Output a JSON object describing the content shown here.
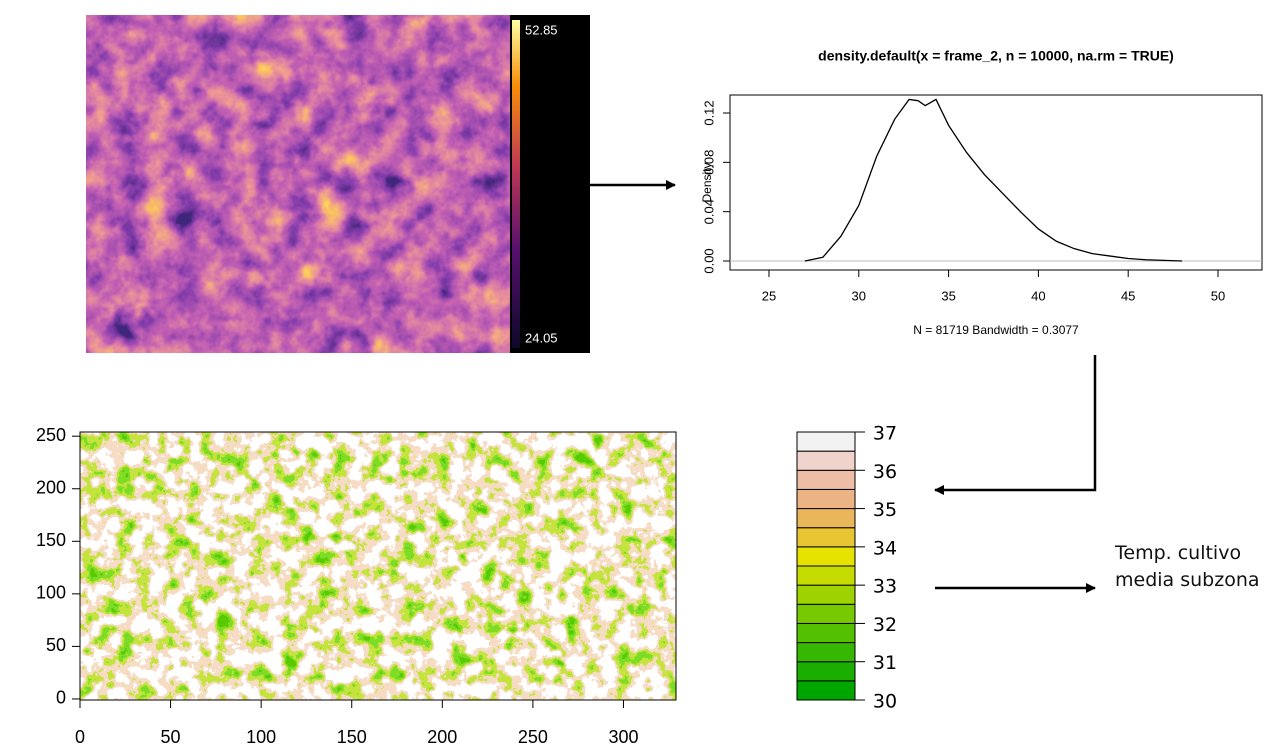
{
  "thermal_image": {
    "max_label": "52.85",
    "min_label": "24.05"
  },
  "chart_data": [
    {
      "type": "line",
      "title": "density.default(x = frame_2, n = 10000, na.rm = TRUE)",
      "y_label": "Density",
      "x_label": "N = 81719   Bandwidth = 0.3077",
      "x": [
        27,
        28,
        29,
        30,
        31,
        32,
        32.8,
        33.3,
        33.7,
        34.3,
        35,
        36,
        37,
        38,
        39,
        40,
        41,
        42,
        43,
        44,
        45,
        46,
        48
      ],
      "values": [
        0,
        0.003,
        0.02,
        0.045,
        0.085,
        0.115,
        0.131,
        0.13,
        0.126,
        0.131,
        0.11,
        0.088,
        0.07,
        0.055,
        0.04,
        0.026,
        0.016,
        0.01,
        0.006,
        0.004,
        0.002,
        0.001,
        0
      ],
      "color": "#000000",
      "xlim": [
        22.83,
        52.45
      ],
      "ylim": [
        -0.0073,
        0.1346
      ],
      "xticks": [
        25,
        30,
        35,
        40,
        45,
        50
      ],
      "yticks": [
        {
          "value": 0,
          "label": "0.00"
        },
        {
          "value": 0.04,
          "label": "0.04"
        },
        {
          "value": 0.08,
          "label": "0.08"
        },
        {
          "value": 0.12,
          "label": "0.12"
        }
      ]
    },
    {
      "type": "raster",
      "xlim": [
        0,
        329
      ],
      "ylim": [
        -1,
        254
      ],
      "xticks": [
        0,
        50,
        100,
        150,
        200,
        250,
        300
      ],
      "yticks": [
        0,
        50,
        100,
        150,
        200,
        250
      ]
    },
    {
      "type": "colorbar",
      "ylim": [
        30,
        37
      ],
      "yticks": [
        30,
        31,
        32,
        33,
        34,
        35,
        36,
        37
      ],
      "colors": [
        "#00A600",
        "#1AAE00",
        "#36B700",
        "#55C000",
        "#78CA00",
        "#9ED300",
        "#C6DC00",
        "#E6E300",
        "#E8C532",
        "#EAB65A",
        "#ECB384",
        "#EEBDA6",
        "#F0D4CB",
        "#F2F2F2"
      ]
    }
  ],
  "annotation": "Temp. cultivo media subzona"
}
